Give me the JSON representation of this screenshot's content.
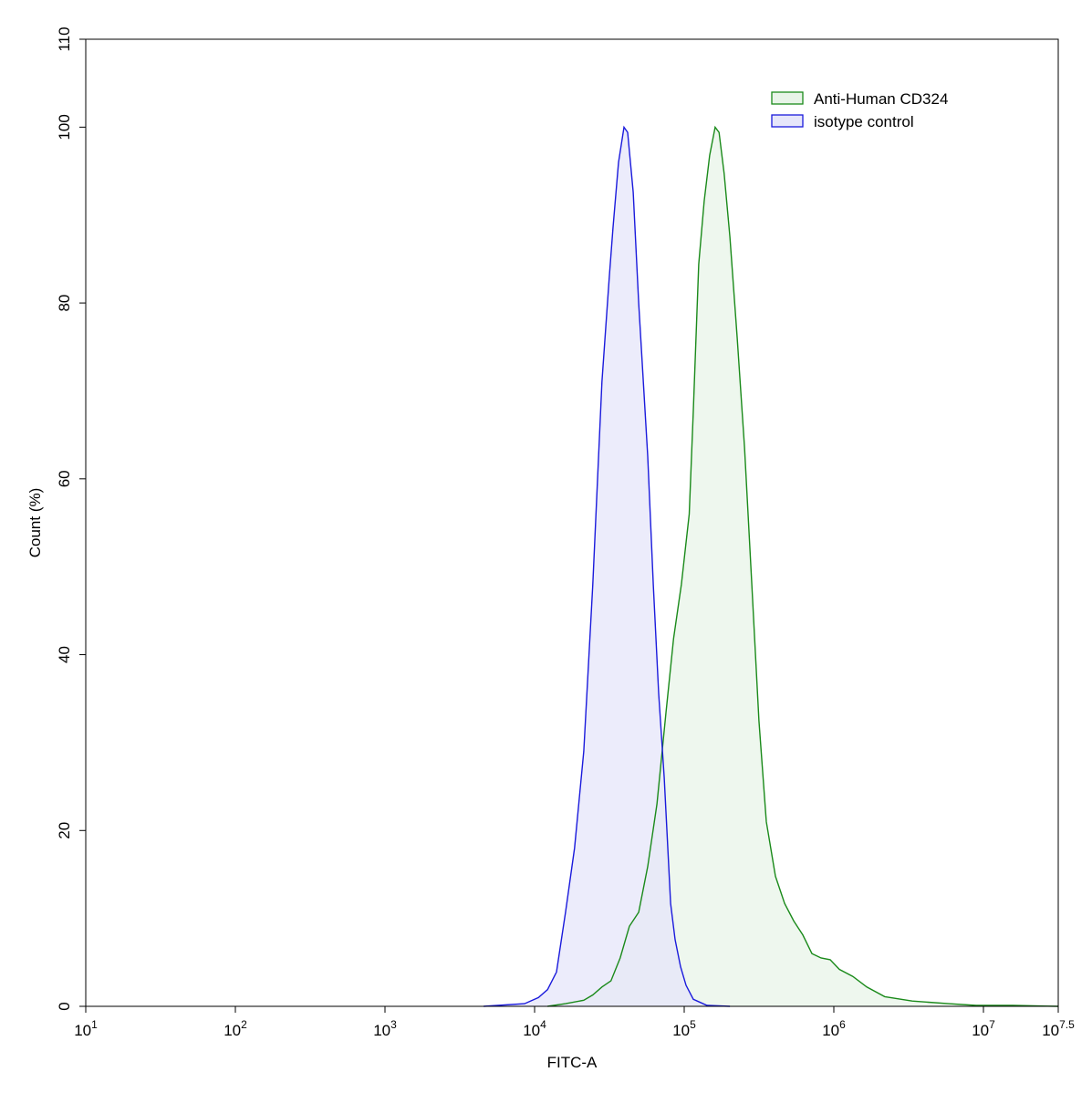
{
  "chart_data": {
    "type": "area",
    "x_label": "FITC-A",
    "y_label": "Count  (%)",
    "xscale": "log",
    "xlim": [
      10,
      31622776.6
    ],
    "ylim": [
      0,
      110
    ],
    "xticks": [
      {
        "value": 10,
        "label": "10",
        "sup": "1"
      },
      {
        "value": 100,
        "label": "10",
        "sup": "2"
      },
      {
        "value": 1000,
        "label": "10",
        "sup": "3"
      },
      {
        "value": 10000,
        "label": "10",
        "sup": "4"
      },
      {
        "value": 100000,
        "label": "10",
        "sup": "5"
      },
      {
        "value": 1000000,
        "label": "10",
        "sup": "6"
      },
      {
        "value": 10000000,
        "label": "10",
        "sup": "7"
      },
      {
        "value": 31622776.6,
        "label": "10",
        "sup": "7.5"
      }
    ],
    "yticks": [
      0,
      20,
      40,
      60,
      80,
      100,
      110
    ],
    "legend": "upper right",
    "series": [
      {
        "name": "Anti-Human CD324",
        "color": "#1a8a1a",
        "fill": "#e8f4e8",
        "x": [
          12200,
          16100,
          21300,
          24500,
          28200,
          32400,
          37300,
          43000,
          49600,
          57000,
          65700,
          75600,
          84900,
          95700,
          108000,
          115000,
          125000,
          136000,
          148000,
          161000,
          171000,
          185000,
          202000,
          226000,
          253000,
          283000,
          316000,
          354000,
          407000,
          469000,
          540000,
          621000,
          714000,
          822000,
          946000,
          1090000,
          1340000,
          1660000,
          2190000,
          3340000,
          5860000,
          8940000,
          15700000,
          31600000
        ],
        "values": [
          0,
          0.3,
          0.7,
          1.3,
          2.2,
          2.9,
          5.5,
          9.1,
          10.7,
          15.9,
          23,
          33.5,
          41.8,
          48,
          56,
          67.8,
          84.4,
          91.6,
          96.8,
          100,
          99.4,
          94.7,
          87.5,
          76,
          63.6,
          48,
          32.5,
          21,
          14.8,
          11.7,
          9.7,
          8.1,
          6,
          5.5,
          5.3,
          4.2,
          3.4,
          2.2,
          1.1,
          0.6,
          0.3,
          0.1,
          0.1,
          0
        ]
      },
      {
        "name": "isotype control",
        "color": "#1a1adc",
        "fill": "#e6e6fa",
        "x": [
          4560,
          8570,
          10600,
          12200,
          14000,
          16100,
          18500,
          21300,
          24500,
          28200,
          31600,
          33400,
          36400,
          39600,
          41900,
          45600,
          49600,
          57000,
          62100,
          67500,
          73500,
          81100,
          86900,
          94600,
          102800,
          115000,
          142000,
          202000
        ],
        "values": [
          0,
          0.3,
          1,
          1.9,
          3.9,
          10.7,
          18,
          29,
          48,
          71,
          83,
          88.5,
          96,
          100,
          99.4,
          92.6,
          80,
          62.6,
          48,
          35.6,
          26,
          11.7,
          7.6,
          4.5,
          2.4,
          0.8,
          0.1,
          0
        ]
      }
    ]
  }
}
